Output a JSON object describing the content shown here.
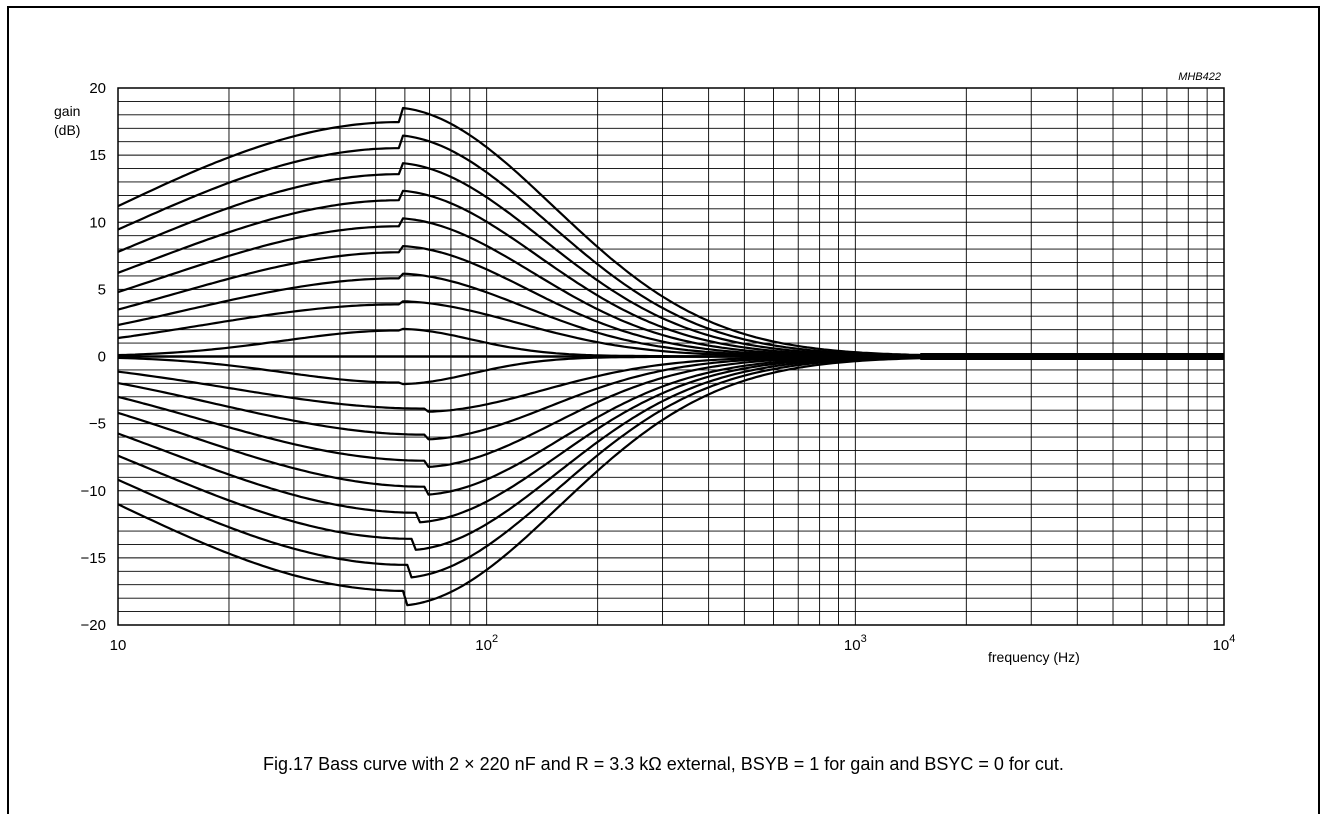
{
  "figure": {
    "code": "MHB422",
    "caption": "Fig.17  Bass curve with 2 × 220 nF and R = 3.3 kΩ external, BSYB = 1 for gain and BSYC = 0 for cut."
  },
  "chart_data": {
    "type": "line",
    "title": "",
    "ylabel": [
      "gain",
      "(dB)"
    ],
    "xlabel": "frequency (Hz)",
    "xscale": "log",
    "xlim": [
      10,
      10000
    ],
    "ylim": [
      -20,
      20
    ],
    "grid": true,
    "x_ticks": [
      {
        "value": 10,
        "base": "10",
        "exp": ""
      },
      {
        "value": 100,
        "base": "10",
        "exp": "2"
      },
      {
        "value": 1000,
        "base": "10",
        "exp": "3"
      },
      {
        "value": 10000,
        "base": "10",
        "exp": "4"
      }
    ],
    "y_ticks": [
      {
        "value": 20,
        "label": "20"
      },
      {
        "value": 15,
        "label": "15"
      },
      {
        "value": 10,
        "label": "10"
      },
      {
        "value": 5,
        "label": "5"
      },
      {
        "value": 0,
        "label": "0"
      },
      {
        "value": -5,
        "label": "−5"
      },
      {
        "value": -10,
        "label": "−10"
      },
      {
        "value": -15,
        "label": "−15"
      },
      {
        "value": -20,
        "label": "−20"
      }
    ],
    "series": [
      {
        "peak_gain_db": 18,
        "peak_hz": 58
      },
      {
        "peak_gain_db": 16,
        "peak_hz": 58
      },
      {
        "peak_gain_db": 14,
        "peak_hz": 58
      },
      {
        "peak_gain_db": 12,
        "peak_hz": 58
      },
      {
        "peak_gain_db": 10,
        "peak_hz": 58
      },
      {
        "peak_gain_db": 8,
        "peak_hz": 58
      },
      {
        "peak_gain_db": 6,
        "peak_hz": 58
      },
      {
        "peak_gain_db": 4,
        "peak_hz": 58
      },
      {
        "peak_gain_db": 2,
        "peak_hz": 58
      },
      {
        "peak_gain_db": 0,
        "peak_hz": 58
      },
      {
        "peak_gain_db": -2,
        "peak_hz": 58
      },
      {
        "peak_gain_db": -4,
        "peak_hz": 68
      },
      {
        "peak_gain_db": -6,
        "peak_hz": 68
      },
      {
        "peak_gain_db": -8,
        "peak_hz": 68
      },
      {
        "peak_gain_db": -10,
        "peak_hz": 68
      },
      {
        "peak_gain_db": -12,
        "peak_hz": 65
      },
      {
        "peak_gain_db": -14,
        "peak_hz": 63
      },
      {
        "peak_gain_db": -16,
        "peak_hz": 61
      },
      {
        "peak_gain_db": -18,
        "peak_hz": 60
      }
    ]
  }
}
